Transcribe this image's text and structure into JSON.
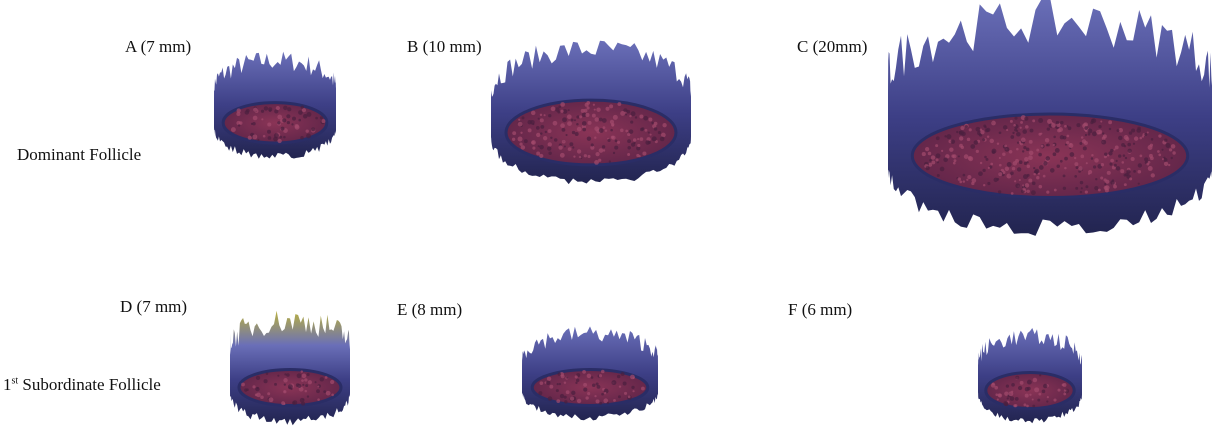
{
  "rows": [
    {
      "label": {
        "text": "Dominant Follicle"
      },
      "panels": [
        {
          "label": "A (7 mm)"
        },
        {
          "label": "B (10 mm)"
        },
        {
          "label": "C (20mm)"
        }
      ]
    },
    {
      "label": {
        "number": "1",
        "ordinal": "st",
        "text": "Subordinate Follicle"
      },
      "panels": [
        {
          "label": "D (7 mm)"
        },
        {
          "label": "E (8 mm)"
        },
        {
          "label": "F (6 mm)"
        }
      ]
    }
  ]
}
